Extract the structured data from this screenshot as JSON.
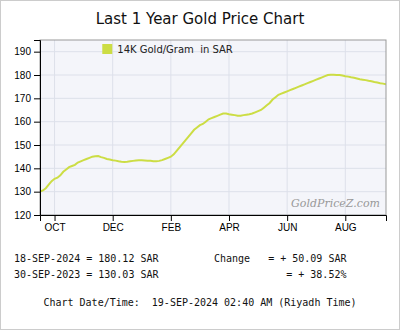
{
  "chart_data": {
    "type": "line",
    "title": "Last 1 Year Gold Price Chart",
    "x": [
      0,
      1,
      2,
      3,
      4,
      5,
      6,
      7,
      8,
      9,
      10,
      11,
      12,
      13,
      14,
      15,
      16,
      17,
      18,
      19,
      20,
      21,
      22,
      23,
      24,
      25,
      26,
      27,
      28,
      29,
      30,
      31,
      32,
      33,
      34,
      35,
      36,
      37,
      38,
      39,
      40,
      41,
      42,
      43,
      44,
      45,
      46,
      47,
      48,
      49,
      50,
      51,
      52,
      53,
      54,
      55,
      56,
      57,
      58,
      59,
      60,
      61,
      62,
      63,
      64,
      65,
      66,
      67,
      68,
      69,
      70,
      71,
      72,
      73,
      74,
      75,
      76,
      77,
      78,
      79,
      80,
      81,
      82,
      83,
      84,
      85,
      86,
      87,
      88,
      89,
      90,
      91,
      92,
      93,
      94,
      95,
      96,
      97,
      98,
      99,
      100,
      101,
      102,
      103,
      104,
      105,
      106,
      107,
      108,
      109,
      110,
      111,
      112,
      113,
      114,
      115,
      116,
      117,
      118,
      119
    ],
    "series": [
      {
        "name": "14K Gold/Gram  in SAR",
        "color": "#ccdd44",
        "values": [
          130.0,
          130.5,
          131.5,
          133.0,
          134.5,
          135.5,
          136.0,
          137.0,
          138.5,
          139.5,
          140.5,
          141.0,
          141.5,
          142.5,
          143.0,
          143.5,
          144.0,
          144.5,
          145.0,
          145.2,
          145.3,
          144.8,
          144.5,
          144.0,
          143.8,
          143.5,
          143.3,
          143.0,
          142.8,
          142.7,
          142.8,
          143.0,
          143.2,
          143.4,
          143.5,
          143.5,
          143.4,
          143.3,
          143.2,
          143.0,
          143.0,
          143.2,
          143.5,
          144.0,
          144.5,
          145.0,
          146.0,
          147.5,
          149.0,
          150.5,
          152.0,
          153.5,
          155.0,
          156.5,
          157.5,
          158.5,
          159.0,
          160.0,
          161.0,
          161.5,
          162.0,
          162.5,
          163.0,
          163.5,
          163.5,
          163.2,
          163.0,
          162.8,
          162.5,
          162.5,
          162.8,
          163.0,
          163.2,
          163.5,
          164.0,
          164.5,
          165.0,
          166.0,
          167.0,
          168.0,
          169.5,
          170.5,
          171.5,
          172.0,
          172.5,
          173.0,
          173.5,
          174.0,
          174.5,
          175.0,
          175.5,
          176.0,
          176.5,
          177.0,
          177.5,
          178.0,
          178.5,
          179.0,
          179.5,
          180.0,
          180.1,
          180.12,
          180.05,
          180.0,
          179.8,
          179.5,
          179.3,
          179.0,
          178.8,
          178.5,
          178.2,
          178.0,
          177.8,
          177.5,
          177.3,
          177.0,
          176.8,
          176.5,
          176.3,
          176.0
        ]
      }
    ],
    "xlim": [
      0,
      119
    ],
    "xticks": [
      {
        "value": 5,
        "label": "OCT"
      },
      {
        "value": 25,
        "label": "DEC"
      },
      {
        "value": 45,
        "label": "FEB"
      },
      {
        "value": 65,
        "label": "APR"
      },
      {
        "value": 85,
        "label": "JUN"
      },
      {
        "value": 105,
        "label": "AUG"
      }
    ],
    "ylim": [
      120,
      195
    ],
    "yticks": [
      120,
      130,
      140,
      150,
      160,
      170,
      180,
      190
    ],
    "grid": true,
    "legend": "upper left",
    "annotations": [
      "GoldPriceZ.com",
      "18-SEP-2024 = 180.12 SAR",
      "30-SEP-2023 = 130.03 SAR",
      "Change   = + 50.09 SAR",
      "            = + 38.52%",
      "Chart Date/Time:  19-SEP-2024 02:40 AM (Riyadh Time)"
    ]
  }
}
